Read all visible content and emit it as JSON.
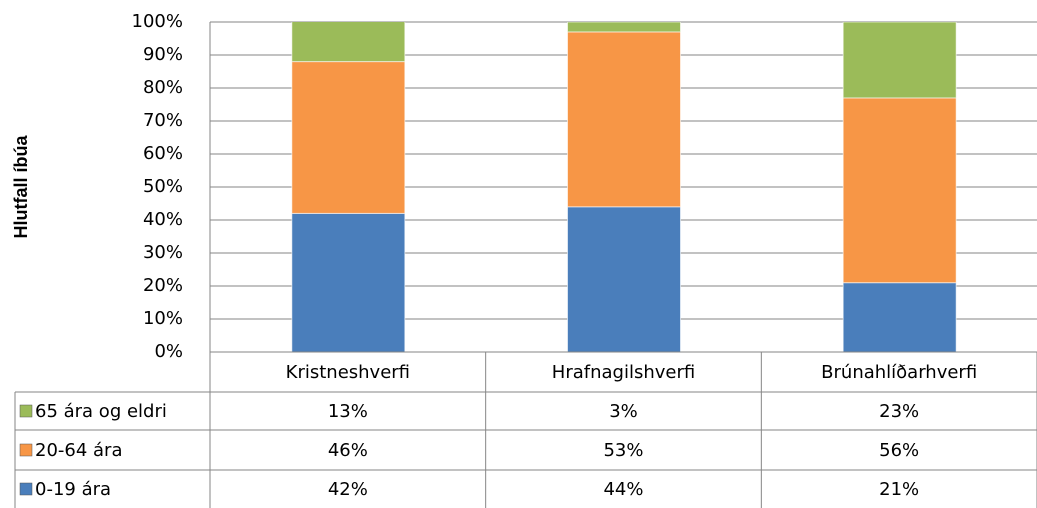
{
  "chart_data": {
    "type": "stacked_bar",
    "y_label": "Hlutfall íbúa",
    "categories": [
      "Kristneshverfi",
      "Hrafnagilshverfi",
      "Brúnahlíðarhverfi"
    ],
    "series": [
      {
        "name": "0-19 ára",
        "color": "#4a7ebb",
        "values": [
          42,
          44,
          21
        ],
        "value_labels": [
          "42%",
          "44%",
          "21%"
        ]
      },
      {
        "name": "20-64 ára",
        "color": "#f79646",
        "values": [
          46,
          53,
          56
        ],
        "value_labels": [
          "46%",
          "53%",
          "56%"
        ]
      },
      {
        "name": "65 ára og eldri",
        "color": "#9bbb59",
        "values": [
          13,
          3,
          23
        ],
        "value_labels": [
          "13%",
          "3%",
          "23%"
        ]
      }
    ],
    "ylim": [
      0,
      100
    ],
    "yticks": [
      {
        "value": 0,
        "label": "0%"
      },
      {
        "value": 10,
        "label": "10%"
      },
      {
        "value": 20,
        "label": "20%"
      },
      {
        "value": 30,
        "label": "30%"
      },
      {
        "value": 40,
        "label": "40%"
      },
      {
        "value": 50,
        "label": "50%"
      },
      {
        "value": 60,
        "label": "60%"
      },
      {
        "value": 70,
        "label": "70%"
      },
      {
        "value": 80,
        "label": "80%"
      },
      {
        "value": 90,
        "label": "90%"
      },
      {
        "value": 100,
        "label": "100%"
      }
    ],
    "grid": true
  }
}
